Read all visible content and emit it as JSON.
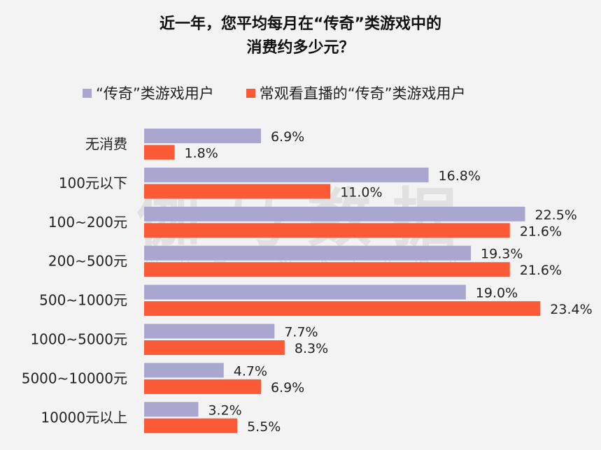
{
  "chart_data": {
    "type": "bar",
    "orientation": "horizontal",
    "title_line1": "近一年，您平均每月在“传奇”类游戏中的",
    "title_line2": "消费约多少元？",
    "categories": [
      "无消费",
      "100元以下",
      "100~200元",
      "200~500元",
      "500~1000元",
      "1000~5000元",
      "5000~10000元",
      "10000元以上"
    ],
    "series": [
      {
        "name": "“传奇”类游戏用户",
        "color": "#a9a6cf",
        "values": [
          6.9,
          16.8,
          22.5,
          19.3,
          19.0,
          7.7,
          4.7,
          3.2
        ],
        "labels": [
          "6.9%",
          "16.8%",
          "22.5%",
          "19.3%",
          "19.0%",
          "7.7%",
          "4.7%",
          "3.2%"
        ]
      },
      {
        "name": "常观看直播的“传奇”类游戏用户",
        "color": "#fc5a36",
        "values": [
          1.8,
          11.0,
          21.6,
          21.6,
          23.4,
          8.3,
          6.9,
          5.5
        ],
        "labels": [
          "1.8%",
          "11.0%",
          "21.6%",
          "21.6%",
          "23.4%",
          "8.3%",
          "6.9%",
          "5.5%"
        ]
      }
    ],
    "unit": "%",
    "legend_position": "top",
    "grid": false
  },
  "watermark": {
    "main": "伽马数据",
    "sub": "微信号：游戏产业报告"
  }
}
